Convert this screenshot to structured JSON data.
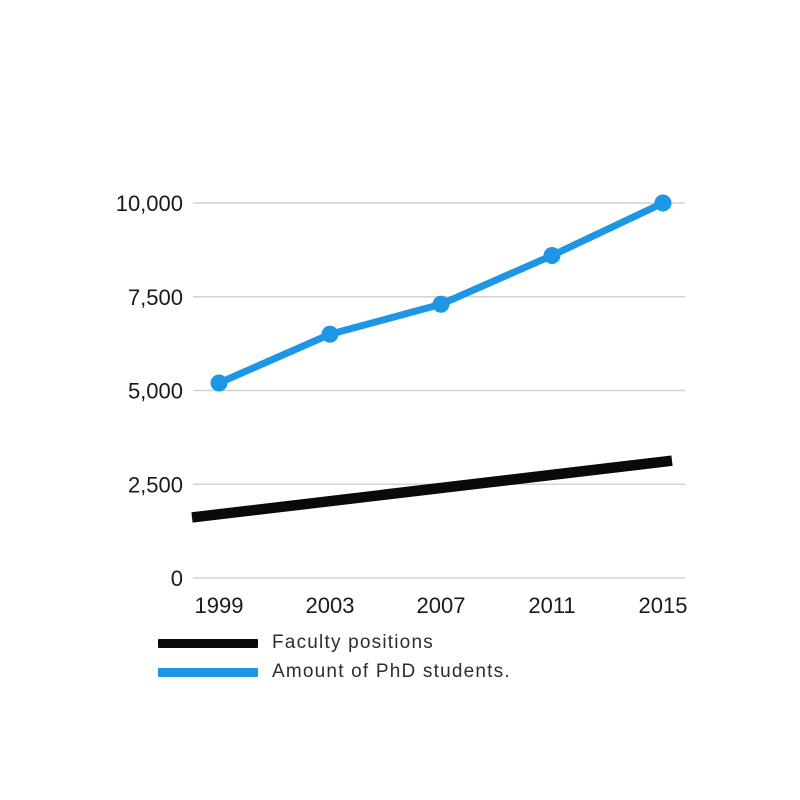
{
  "chart_data": {
    "type": "line",
    "title": "",
    "xlabel": "",
    "ylabel": "",
    "categories": [
      "1999",
      "2003",
      "2007",
      "2011",
      "2015"
    ],
    "series": [
      {
        "name": "Faculty positions",
        "values": [
          1700,
          2050,
          2400,
          2750,
          3100
        ],
        "color": "#0a0a0a",
        "markers": false,
        "line_width": 10.5
      },
      {
        "name": "Amount of PhD students.",
        "values": [
          5200,
          6500,
          7300,
          8600,
          10000
        ],
        "color": "#1E96E6",
        "markers": true,
        "line_width": 7
      }
    ],
    "ylim": [
      0,
      10000
    ],
    "yticks": [
      0,
      2500,
      5000,
      7500,
      10000
    ],
    "ytick_labels": [
      "0",
      "2,500",
      "5,000",
      "7,500",
      "10,000"
    ],
    "grid": true,
    "gridline_color": "#d2d2d2",
    "tick_label_color": "#1a1a1a",
    "legend_position": "bottom-left"
  },
  "legend": {
    "items": [
      {
        "label": "Faculty positions",
        "color": "#0a0a0a"
      },
      {
        "label": "Amount of PhD students.",
        "color": "#1E96E6"
      }
    ]
  },
  "colors": {
    "background": "#ffffff",
    "accent_blue": "#1E96E6",
    "series_black": "#0a0a0a",
    "gridline": "#d2d2d2",
    "legend_text": "#2d2d2d"
  }
}
